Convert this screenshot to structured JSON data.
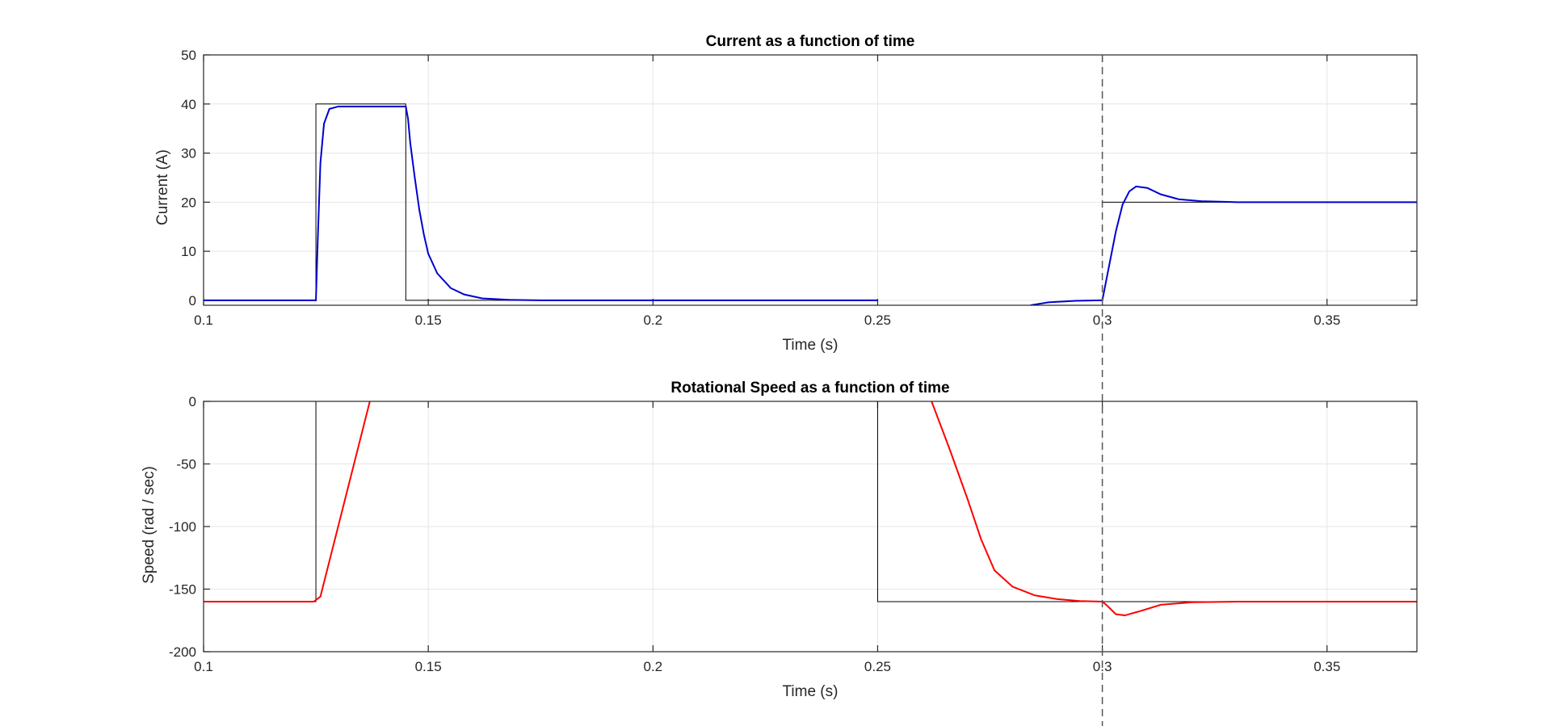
{
  "chart_data": [
    {
      "type": "line",
      "title": "Current as a function of time",
      "xlabel": "Time (s)",
      "ylabel": "Current (A)",
      "xlim": [
        0.1,
        0.37
      ],
      "ylim": [
        -1,
        50
      ],
      "xticks": [
        0.1,
        0.15,
        0.2,
        0.25,
        0.3,
        0.35
      ],
      "xtick_labels": [
        "0.1",
        "0.15",
        "0.2",
        "0.25",
        "0.3",
        "0.35"
      ],
      "yticks": [
        0,
        10,
        20,
        30,
        40,
        50
      ],
      "ytick_labels": [
        "0",
        "10",
        "20",
        "30",
        "40",
        "50"
      ],
      "grid": true,
      "series": [
        {
          "color": "#000000",
          "width": 1.0,
          "x": [
            0.1,
            0.125,
            0.125,
            0.145,
            0.145,
            0.25,
            0.25,
            0.3,
            0.3,
            0.37
          ],
          "y": [
            0,
            0,
            40,
            40,
            0,
            0,
            null,
            null,
            20,
            20
          ]
        },
        {
          "color": "#0000d0",
          "width": 2.0,
          "x": [
            0.1,
            0.125,
            0.1254,
            0.126,
            0.1268,
            0.128,
            0.13,
            0.135,
            0.145,
            0.1455,
            0.146,
            0.147,
            0.148,
            0.149,
            0.15,
            0.152,
            0.155,
            0.158,
            0.162,
            0.168,
            0.175,
            0.19,
            0.25,
            null,
            0.284,
            0.288,
            0.294,
            0.2995,
            0.3,
            0.3015,
            0.303,
            0.3045,
            0.306,
            0.3075,
            0.31,
            0.313,
            0.317,
            0.322,
            0.33,
            0.35,
            0.37
          ],
          "y": [
            0,
            0,
            12,
            28,
            36,
            39,
            39.5,
            39.5,
            39.5,
            37,
            32,
            25,
            18.5,
            13.5,
            9.5,
            5.5,
            2.5,
            1.2,
            0.4,
            0.1,
            0,
            0,
            0,
            null,
            -1,
            -0.4,
            -0.1,
            0,
            0,
            7,
            14,
            19.5,
            22.2,
            23.2,
            22.9,
            21.6,
            20.6,
            20.2,
            20.0,
            20,
            20
          ]
        }
      ]
    },
    {
      "type": "line",
      "title": "Rotational Speed as a function of time",
      "xlabel": "Time (s)",
      "ylabel": "Speed (rad / sec)",
      "xlim": [
        0.1,
        0.37
      ],
      "ylim": [
        -200,
        0
      ],
      "xticks": [
        0.1,
        0.15,
        0.2,
        0.25,
        0.3,
        0.35
      ],
      "xtick_labels": [
        "0.1",
        "0.15",
        "0.2",
        "0.25",
        "0.3",
        "0.35"
      ],
      "yticks": [
        -200,
        -150,
        -100,
        -50,
        0
      ],
      "ytick_labels": [
        "-200",
        "-150",
        "-100",
        "-50",
        "0"
      ],
      "grid": true,
      "series": [
        {
          "color": "#000000",
          "width": 1.0,
          "x": [
            0.1,
            0.125,
            0.125,
            null,
            0.25,
            0.25,
            0.37
          ],
          "y": [
            -160,
            -160,
            0,
            null,
            0,
            -160,
            -160
          ]
        },
        {
          "color": "#ff0000",
          "width": 2.0,
          "x": [
            0.1,
            0.1245,
            0.126,
            0.137,
            null,
            0.262,
            0.266,
            0.27,
            0.273,
            0.276,
            0.28,
            0.285,
            0.29,
            0.295,
            0.3,
            0.301,
            0.303,
            0.305,
            0.308,
            0.313,
            0.32,
            0.33,
            0.37
          ],
          "y": [
            -160,
            -160,
            -156,
            0,
            null,
            0,
            -38,
            -78,
            -110,
            -135,
            -148,
            -155,
            -158,
            -159.5,
            -160,
            -163,
            -170,
            -171,
            -168,
            -162.5,
            -160.5,
            -160,
            -160
          ]
        }
      ]
    }
  ],
  "cursor": {
    "x": 0.3,
    "style": "dashed"
  }
}
